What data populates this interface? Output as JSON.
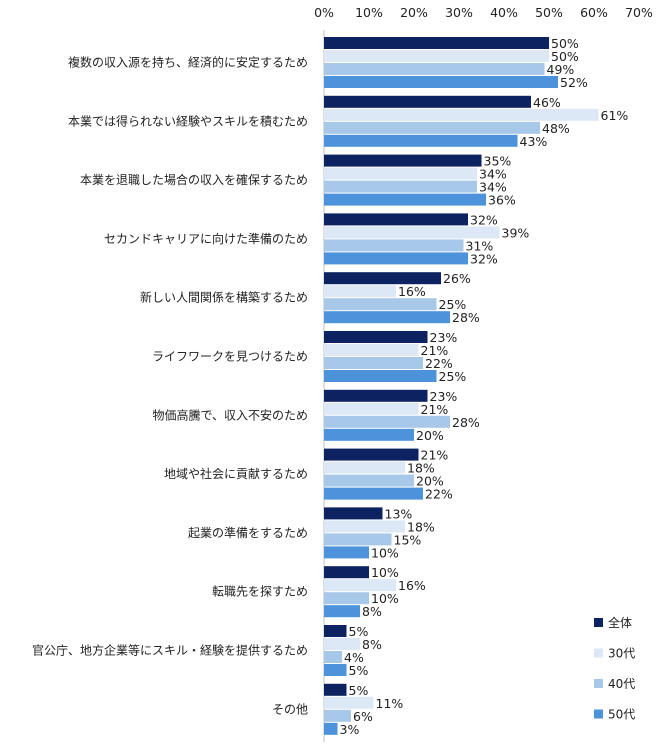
{
  "chart_data": {
    "type": "bar",
    "orientation": "horizontal",
    "title": "",
    "xlabel": "",
    "ylabel": "",
    "xlim": [
      0,
      70
    ],
    "x_ticks": [
      "0%",
      "10%",
      "20%",
      "30%",
      "40%",
      "50%",
      "60%",
      "70%"
    ],
    "x_tick_values": [
      0,
      10,
      20,
      30,
      40,
      50,
      60,
      70
    ],
    "value_suffix": "%",
    "grid": false,
    "legend_position": "bottom-right",
    "categories": [
      "複数の収入源を持ち、経済的に安定するため",
      "本業では得られない経験やスキルを積むため",
      "本業を退職した場合の収入を確保するため",
      "セカンドキャリアに向けた準備のため",
      "新しい人間関係を構築するため",
      "ライフワークを見つけるため",
      "物価高騰で、収入不安のため",
      "地域や社会に貢献するため",
      "起業の準備をするため",
      "転職先を探すため",
      "官公庁、地方企業等にスキル・経験を提供するため",
      "その他"
    ],
    "series": [
      {
        "name": "全体",
        "color": "#0d2260",
        "values": [
          50,
          46,
          35,
          32,
          26,
          23,
          23,
          21,
          13,
          10,
          5,
          5
        ]
      },
      {
        "name": "30代",
        "color": "#dde8f6",
        "values": [
          50,
          61,
          34,
          39,
          16,
          21,
          21,
          18,
          18,
          16,
          8,
          11
        ]
      },
      {
        "name": "40代",
        "color": "#a8c8ea",
        "values": [
          49,
          48,
          34,
          31,
          25,
          22,
          28,
          20,
          15,
          10,
          4,
          6
        ]
      },
      {
        "name": "50代",
        "color": "#4d93db",
        "values": [
          52,
          43,
          36,
          32,
          28,
          25,
          20,
          22,
          10,
          8,
          5,
          3
        ]
      }
    ]
  }
}
